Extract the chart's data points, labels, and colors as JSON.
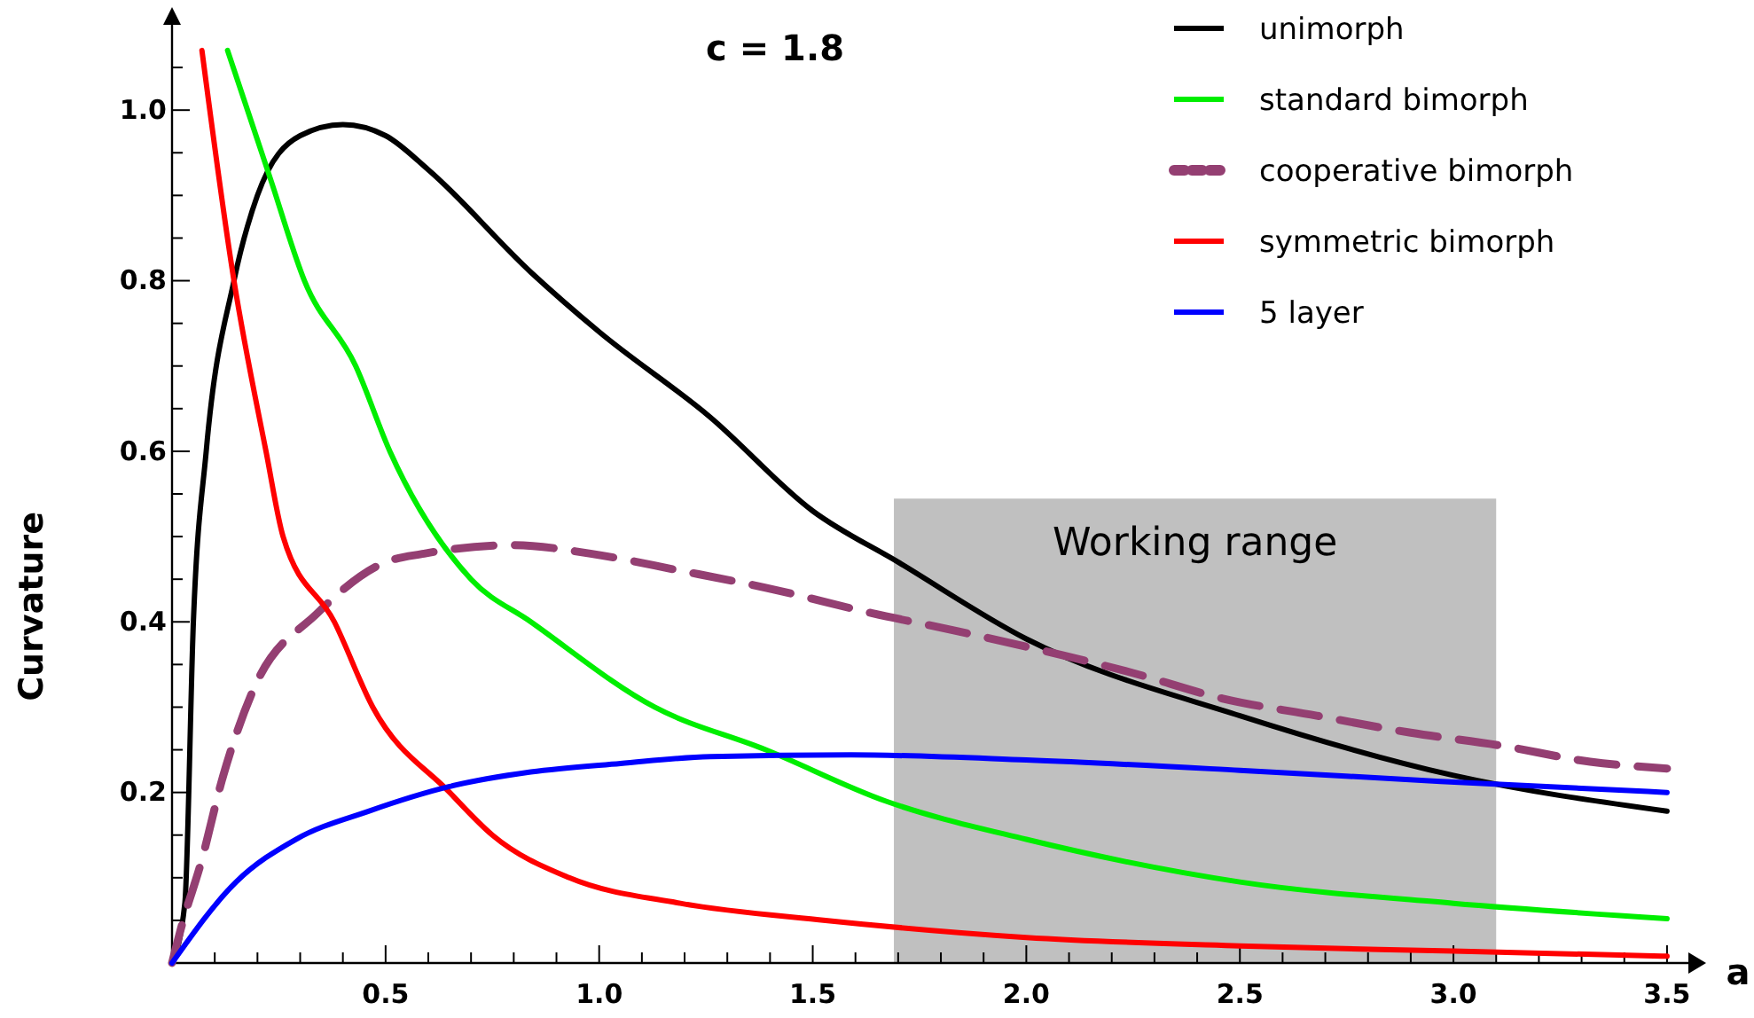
{
  "chart_data": {
    "type": "line",
    "title": "c = 1.8",
    "xlabel": "a",
    "ylabel": "Curvature",
    "xlim": [
      0,
      3.55
    ],
    "ylim": [
      0,
      1.1
    ],
    "xticks": [
      {
        "value": 0,
        "label": null
      },
      {
        "value": 0.1,
        "label": null
      },
      {
        "value": 0.2,
        "label": null
      },
      {
        "value": 0.3,
        "label": null
      },
      {
        "value": 0.4,
        "label": null
      },
      {
        "value": 0.5,
        "label": "0.5"
      },
      {
        "value": 0.6,
        "label": null
      },
      {
        "value": 0.7,
        "label": null
      },
      {
        "value": 0.8,
        "label": null
      },
      {
        "value": 0.9,
        "label": null
      },
      {
        "value": 1.0,
        "label": "1.0"
      },
      {
        "value": 1.1,
        "label": null
      },
      {
        "value": 1.2,
        "label": null
      },
      {
        "value": 1.3,
        "label": null
      },
      {
        "value": 1.4,
        "label": null
      },
      {
        "value": 1.5,
        "label": "1.5"
      },
      {
        "value": 1.6,
        "label": null
      },
      {
        "value": 1.7,
        "label": null
      },
      {
        "value": 1.8,
        "label": null
      },
      {
        "value": 1.9,
        "label": null
      },
      {
        "value": 2.0,
        "label": "2.0"
      },
      {
        "value": 2.1,
        "label": null
      },
      {
        "value": 2.2,
        "label": null
      },
      {
        "value": 2.3,
        "label": null
      },
      {
        "value": 2.4,
        "label": null
      },
      {
        "value": 2.5,
        "label": "2.5"
      },
      {
        "value": 2.6,
        "label": null
      },
      {
        "value": 2.7,
        "label": null
      },
      {
        "value": 2.8,
        "label": null
      },
      {
        "value": 2.9,
        "label": null
      },
      {
        "value": 3.0,
        "label": "3.0"
      },
      {
        "value": 3.1,
        "label": null
      },
      {
        "value": 3.2,
        "label": null
      },
      {
        "value": 3.3,
        "label": null
      },
      {
        "value": 3.4,
        "label": null
      },
      {
        "value": 3.5,
        "label": "3.5"
      }
    ],
    "yticks": [
      {
        "value": 0.05,
        "label": null
      },
      {
        "value": 0.1,
        "label": null
      },
      {
        "value": 0.15,
        "label": null
      },
      {
        "value": 0.2,
        "label": "0.2"
      },
      {
        "value": 0.25,
        "label": null
      },
      {
        "value": 0.3,
        "label": null
      },
      {
        "value": 0.35,
        "label": null
      },
      {
        "value": 0.4,
        "label": "0.4"
      },
      {
        "value": 0.45,
        "label": null
      },
      {
        "value": 0.5,
        "label": null
      },
      {
        "value": 0.55,
        "label": null
      },
      {
        "value": 0.6,
        "label": "0.6"
      },
      {
        "value": 0.65,
        "label": null
      },
      {
        "value": 0.7,
        "label": null
      },
      {
        "value": 0.75,
        "label": null
      },
      {
        "value": 0.8,
        "label": "0.8"
      },
      {
        "value": 0.85,
        "label": null
      },
      {
        "value": 0.9,
        "label": null
      },
      {
        "value": 0.95,
        "label": null
      },
      {
        "value": 1.0,
        "label": "1.0"
      },
      {
        "value": 1.05,
        "label": null
      }
    ],
    "grid": false,
    "legend": "top right",
    "marker": "none",
    "bands": [
      {
        "axis": "x",
        "from": 1.69,
        "to": 3.1,
        "label": "Working range",
        "color": "#c0c0c0"
      }
    ],
    "series": [
      {
        "name": "unimorph",
        "color": "#000000",
        "line_style": "solid",
        "x": [
          0,
          0.03,
          0.05,
          0.08,
          0.145,
          0.2,
          0.3,
          0.4,
          0.5,
          0.6,
          0.84,
          1.0,
          1.26,
          1.5,
          1.7,
          2.0,
          2.5,
          3.0,
          3.5
        ],
        "values": [
          0,
          0.07,
          0.4,
          0.6,
          0.8,
          0.9,
          0.97,
          0.983,
          0.97,
          0.93,
          0.81,
          0.74,
          0.64,
          0.53,
          0.47,
          0.38,
          0.29,
          0.22,
          0.178
        ]
      },
      {
        "name": "standard bimorph",
        "color": "#00ee00",
        "line_style": "solid",
        "x": [
          0.13,
          0.23,
          0.31,
          0.43,
          0.51,
          0.7,
          0.84,
          1.13,
          1.39,
          1.67,
          2.0,
          2.5,
          3.0,
          3.5
        ],
        "values": [
          1.07,
          0.92,
          0.8,
          0.7,
          0.6,
          0.45,
          0.4,
          0.3,
          0.25,
          0.19,
          0.145,
          0.095,
          0.07,
          0.052
        ]
      },
      {
        "name": "cooperative bimorph",
        "color": "#943f72",
        "line_style": "dashed",
        "x": [
          0,
          0.025,
          0.067,
          0.12,
          0.19,
          0.34,
          0.5,
          0.59,
          0.8,
          0.98,
          1.19,
          1.39,
          1.64,
          1.83,
          2.05,
          2.25,
          2.46,
          2.68,
          2.9,
          3.11,
          3.32,
          3.5
        ],
        "values": [
          0,
          0.048,
          0.116,
          0.22,
          0.32,
          0.41,
          0.47,
          0.48,
          0.49,
          0.48,
          0.46,
          0.44,
          0.41,
          0.39,
          0.365,
          0.34,
          0.31,
          0.29,
          0.27,
          0.255,
          0.236,
          0.228
        ]
      },
      {
        "name": "symmetric bimorph",
        "color": "#ff0000",
        "line_style": "solid",
        "x": [
          0.07,
          0.145,
          0.22,
          0.26,
          0.38,
          0.47,
          0.65,
          0.75,
          0.93,
          1.19,
          1.53,
          2.0,
          2.5,
          3.0,
          3.5
        ],
        "values": [
          1.07,
          0.8,
          0.6,
          0.5,
          0.4,
          0.3,
          0.2,
          0.15,
          0.1,
          0.07,
          0.05,
          0.03,
          0.02,
          0.014,
          0.008
        ]
      },
      {
        "name": "5 layer",
        "color": "#0000ff",
        "line_style": "solid",
        "x": [
          0,
          0.15,
          0.29,
          0.46,
          0.65,
          0.84,
          1.05,
          1.26,
          1.59,
          2.0,
          2.5,
          2.97,
          3.5
        ],
        "values": [
          0,
          0.095,
          0.145,
          0.178,
          0.207,
          0.224,
          0.234,
          0.242,
          0.244,
          0.238,
          0.226,
          0.213,
          0.2
        ]
      }
    ]
  }
}
